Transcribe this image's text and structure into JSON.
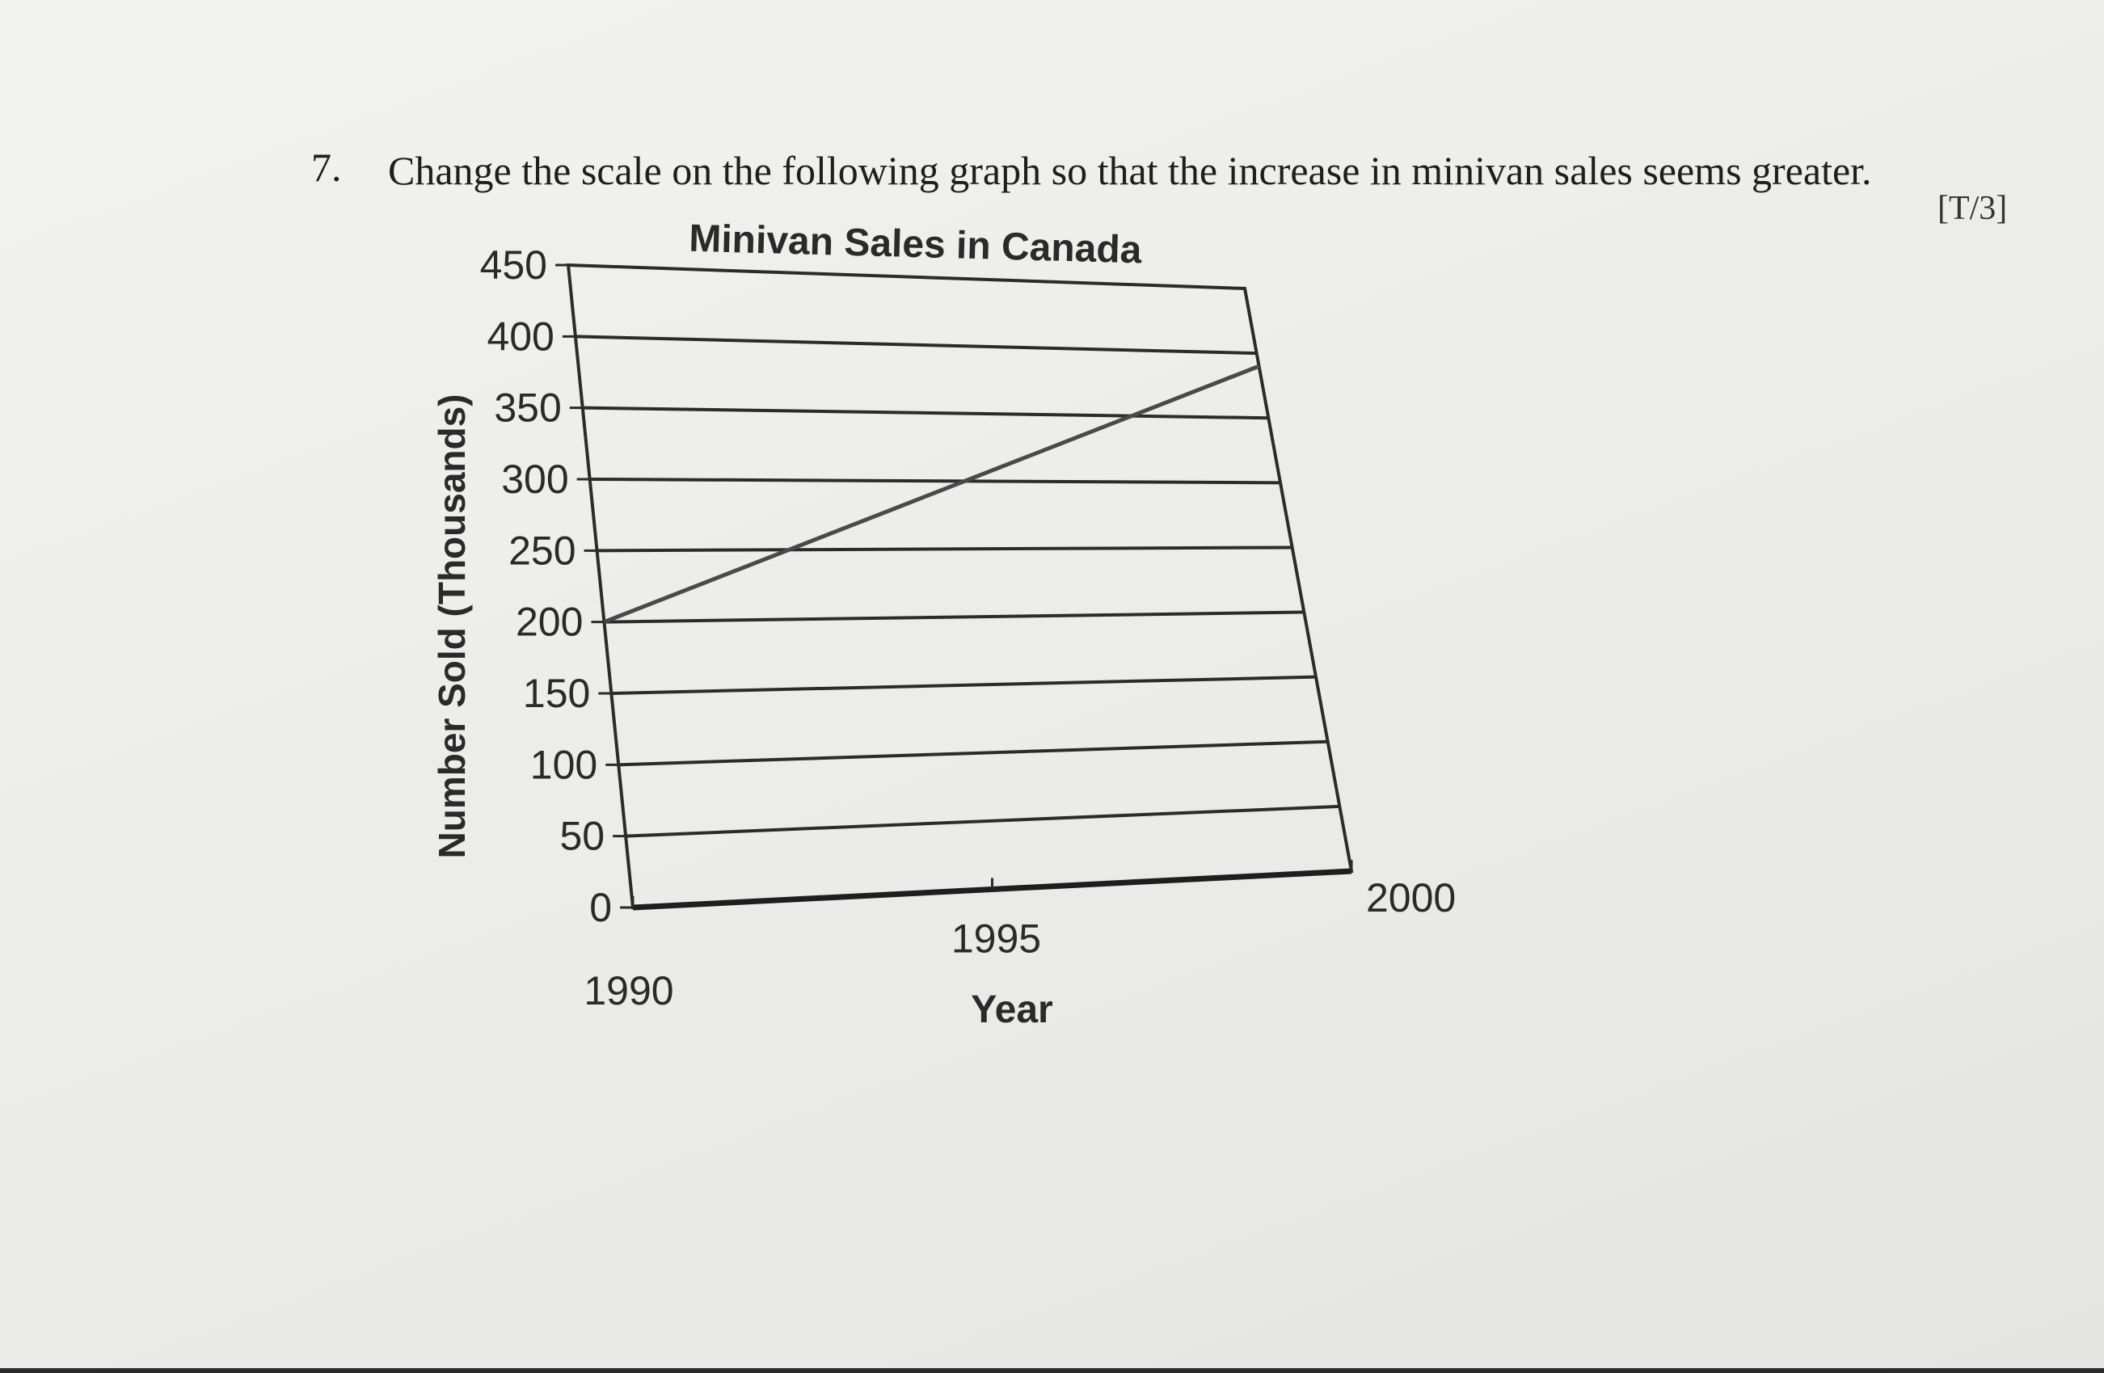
{
  "question": {
    "number": "7.",
    "text": "Change the scale on the following graph so that the increase in minivan sales seems greater.",
    "marks": "[T/3]"
  },
  "chart_data": {
    "type": "line",
    "title": "Minivan Sales in Canada",
    "xlabel": "Year",
    "ylabel": "Number Sold (Thousands)",
    "x_ticks": [
      "1990",
      "1995",
      "2000"
    ],
    "y_ticks": [
      "0",
      "50",
      "100",
      "150",
      "200",
      "250",
      "300",
      "350",
      "400",
      "450"
    ],
    "xlim": [
      1990,
      2000
    ],
    "ylim": [
      0,
      450
    ],
    "grid": true,
    "series": [
      {
        "x": [
          1990,
          2000
        ],
        "y": [
          200,
          390
        ]
      }
    ]
  }
}
